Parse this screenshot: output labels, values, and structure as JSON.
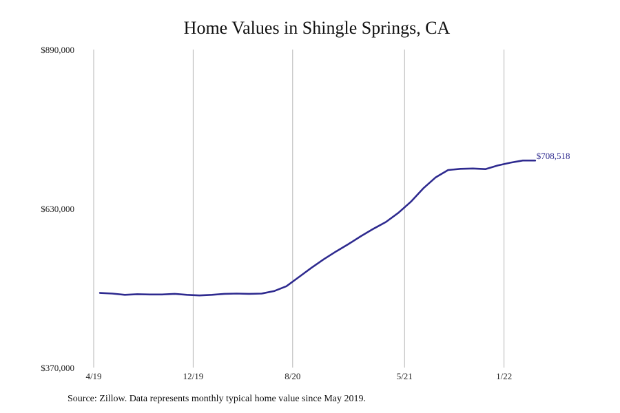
{
  "chart_data": {
    "type": "line",
    "title": "Home Values in Shingle Springs, CA",
    "xlabel": "",
    "ylabel": "",
    "ylim": [
      370000,
      890000
    ],
    "y_ticks": [
      370000,
      630000,
      890000
    ],
    "y_tick_labels": [
      "$370,000",
      "$630,000",
      "$890,000"
    ],
    "x_ticks": [
      "2019-04",
      "2019-12",
      "2020-08",
      "2021-05",
      "2022-01"
    ],
    "x_tick_labels": [
      "4/19",
      "12/19",
      "8/20",
      "5/21",
      "1/22"
    ],
    "grid": "vertical",
    "line_color": "#2e2a8f",
    "series": [
      {
        "name": "",
        "x": [
          "2019-05",
          "2019-06",
          "2019-07",
          "2019-08",
          "2019-09",
          "2019-10",
          "2019-11",
          "2019-12",
          "2020-01",
          "2020-02",
          "2020-03",
          "2020-04",
          "2020-05",
          "2020-06",
          "2020-07",
          "2020-08",
          "2020-09",
          "2020-10",
          "2020-11",
          "2020-12",
          "2021-01",
          "2021-02",
          "2021-03",
          "2021-04",
          "2021-05",
          "2021-06",
          "2021-07",
          "2021-08",
          "2021-09",
          "2021-10",
          "2021-11",
          "2021-12",
          "2022-01",
          "2022-02",
          "2022-03",
          "2022-04"
        ],
        "values": [
          492000,
          491000,
          489000,
          490000,
          489500,
          489500,
          490500,
          489000,
          488000,
          489000,
          490500,
          491000,
          490500,
          491000,
          495000,
          503000,
          518000,
          533000,
          547000,
          560000,
          572000,
          585000,
          597000,
          608000,
          623000,
          641000,
          663000,
          681000,
          693000,
          695000,
          695500,
          694500,
          700500,
          705000,
          708518,
          708518
        ],
        "end_label": "$708,518"
      }
    ]
  },
  "source_note": "Source: Zillow. Data represents monthly typical home value since May 2019."
}
